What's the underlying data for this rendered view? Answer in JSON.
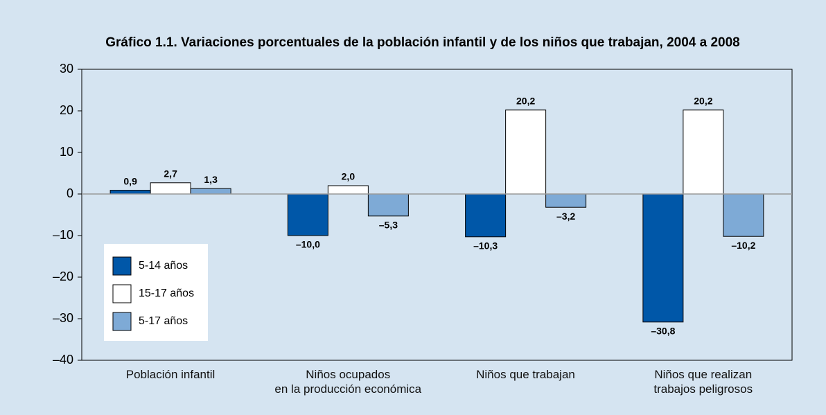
{
  "chart_data": {
    "type": "bar",
    "title": "Gráfico 1.1. Variaciones porcentuales de la población infantil y de los niños que trabajan, 2004 a 2008",
    "categories": [
      "Población infantil",
      "Niños ocupados\nen la producción económica",
      "Niños que trabajan",
      "Niños que realizan\ntrabajos peligrosos"
    ],
    "series": [
      {
        "name": "5-14 años",
        "color": "#0057a8",
        "values": [
          0.9,
          -10.0,
          -10.3,
          -30.8
        ],
        "value_labels": [
          "0,9",
          "–10,0",
          "–10,3",
          "–30,8"
        ]
      },
      {
        "name": "15-17 años",
        "color": "#ffffff",
        "values": [
          2.7,
          2.0,
          20.2,
          20.2
        ],
        "value_labels": [
          "2,7",
          "2,0",
          "20,2",
          "20,2"
        ]
      },
      {
        "name": "5-17 años",
        "color": "#7eaad6",
        "values": [
          1.3,
          -5.3,
          -3.2,
          -10.2
        ],
        "value_labels": [
          "1,3",
          "–5,3",
          "–3,2",
          "–10,2"
        ]
      }
    ],
    "ylim": [
      -40,
      30
    ],
    "yticks": [
      {
        "value": -40,
        "label": "–40"
      },
      {
        "value": -30,
        "label": "–30"
      },
      {
        "value": -20,
        "label": "–20"
      },
      {
        "value": -10,
        "label": "–10"
      },
      0,
      10,
      20,
      30
    ],
    "legend": "lower left"
  }
}
